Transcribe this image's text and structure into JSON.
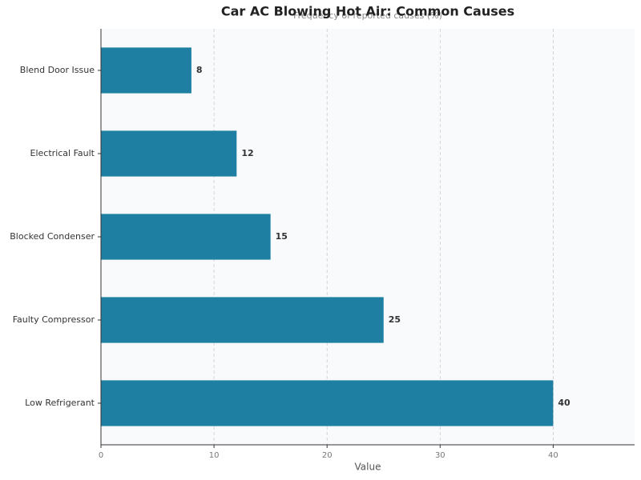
{
  "chart_data": {
    "type": "barh",
    "title": "Car AC Blowing Hot Air: Common Causes",
    "subtitle": "Frequency of reported causes (%)",
    "x_label": "Value",
    "categories": [
      "Blend Door Issue",
      "Electrical Fault",
      "Blocked Condenser",
      "Faulty Compressor",
      "Low Refrigerant"
    ],
    "values": [
      8,
      12,
      15,
      25,
      40
    ],
    "color": "#1f7fa3",
    "xlim": [
      0,
      47.2
    ],
    "xticks": [
      0,
      10,
      20,
      30,
      40
    ],
    "grid": true
  }
}
